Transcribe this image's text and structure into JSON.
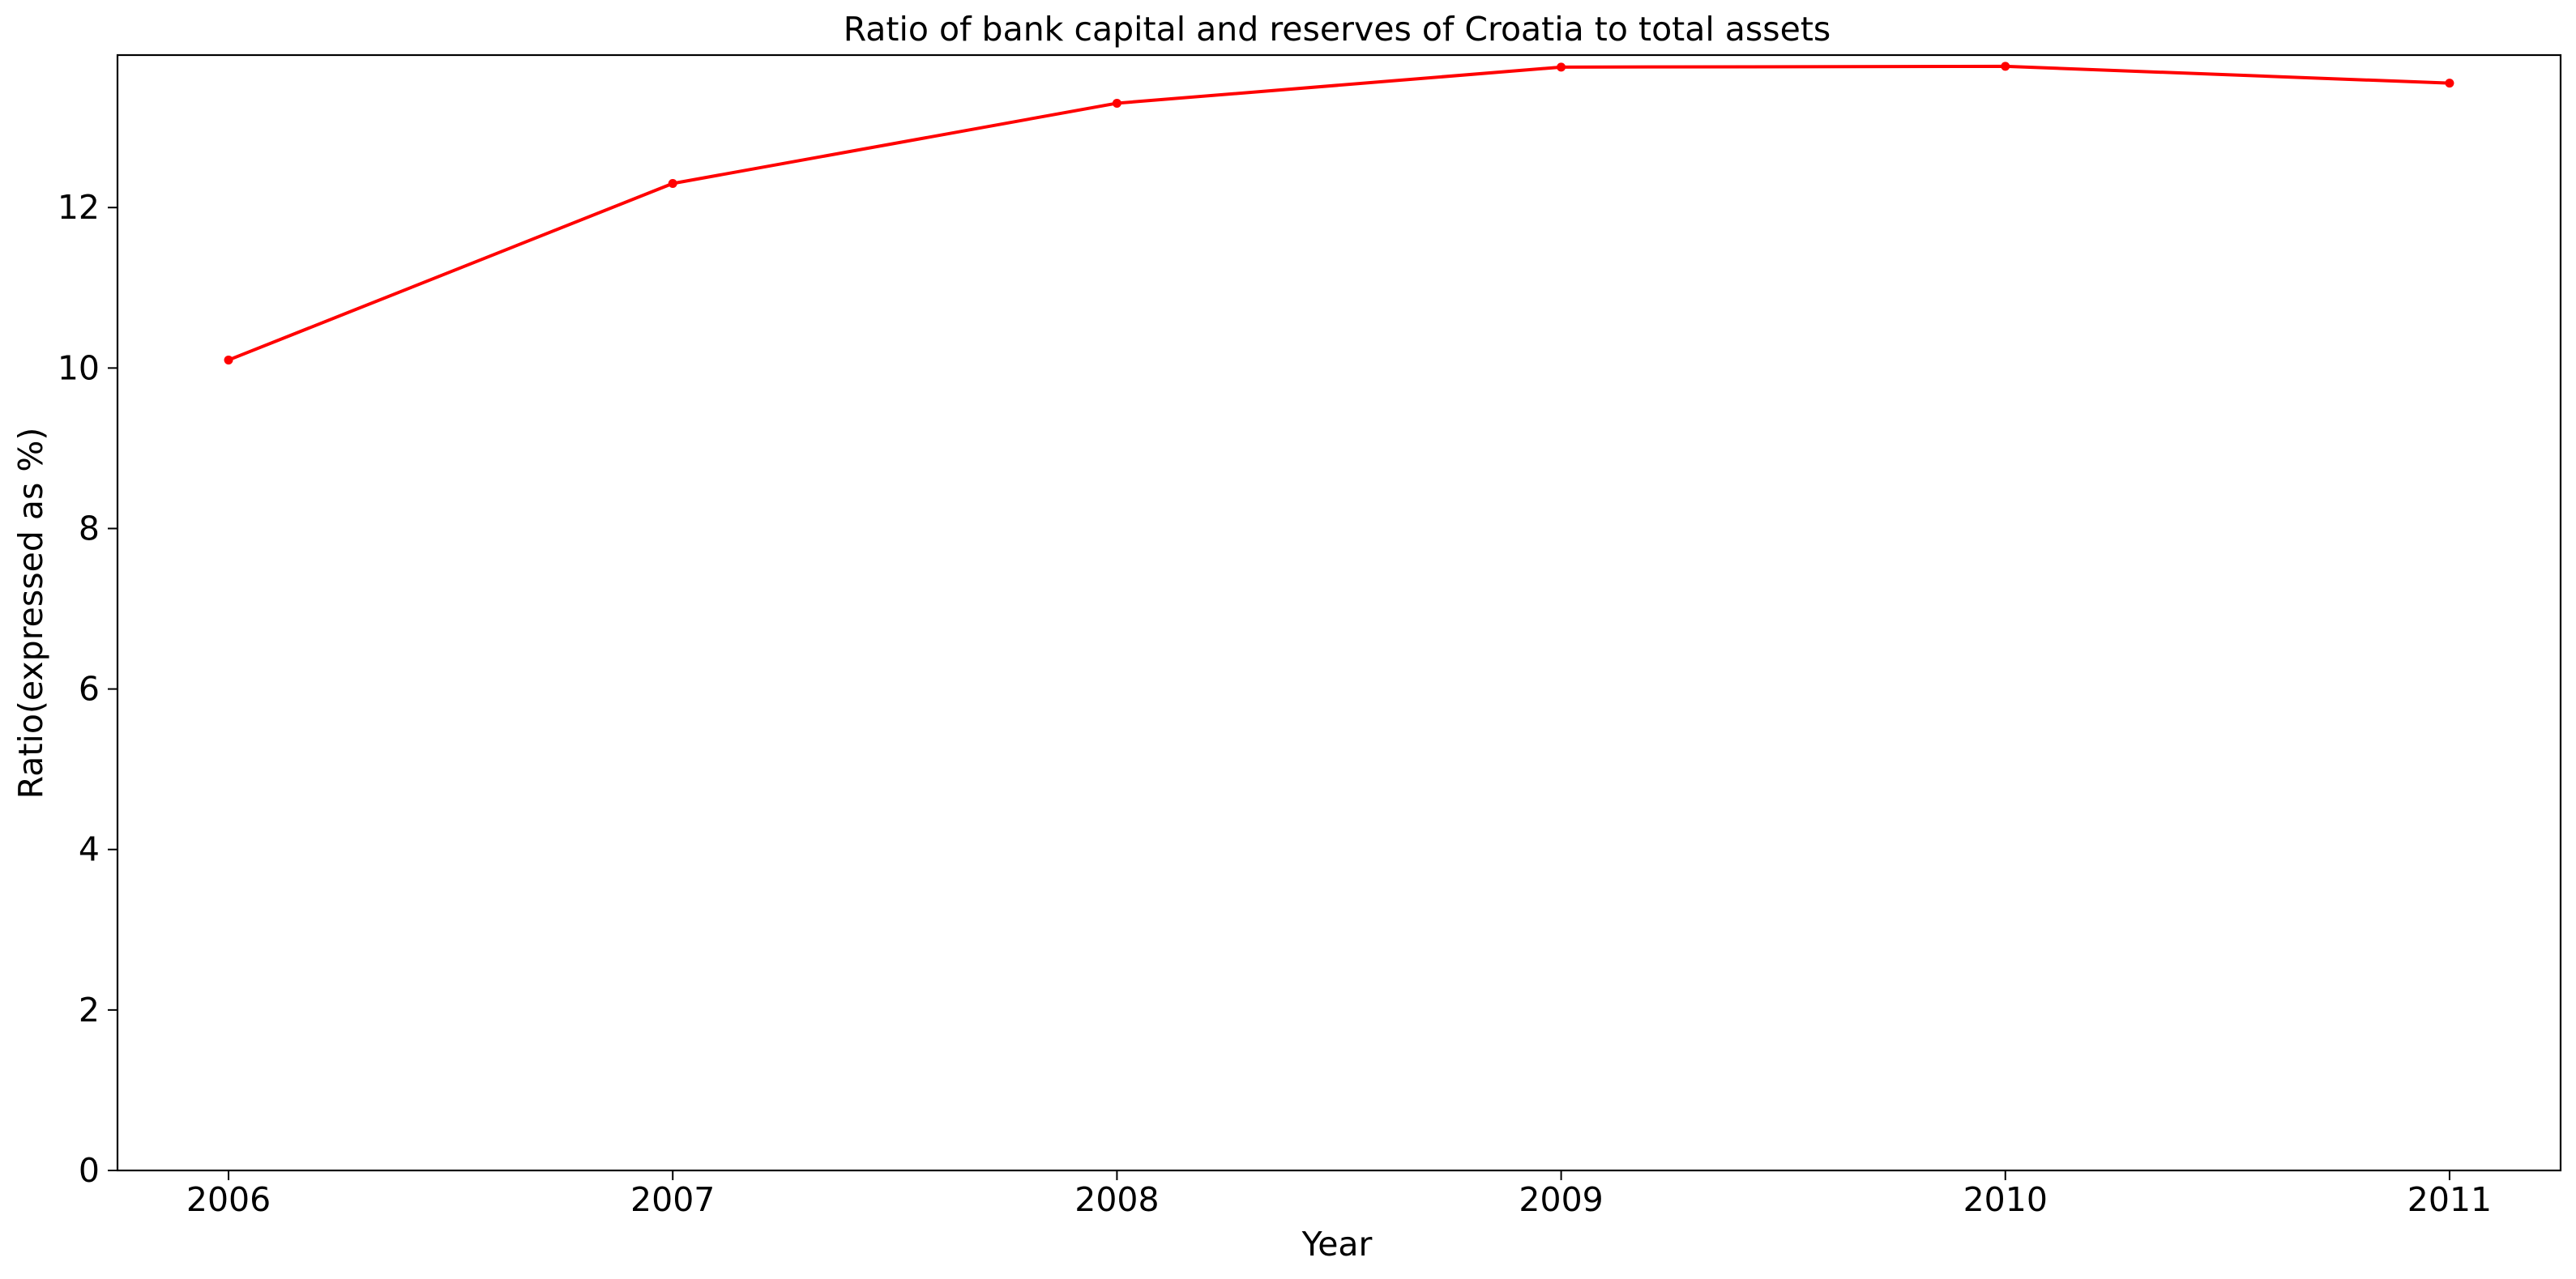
{
  "chart_data": {
    "type": "line",
    "title": "Ratio of bank capital and reserves of Croatia to total assets",
    "xlabel": "Year",
    "ylabel": "Ratio(expressed as %)",
    "x": [
      2006,
      2007,
      2008,
      2009,
      2010,
      2011
    ],
    "series": [
      {
        "values": [
          10.1,
          12.3,
          13.3,
          13.75,
          13.76,
          13.55
        ],
        "color": "#ff0000",
        "marker": "dot"
      }
    ],
    "xlim": [
      2005.75,
      2011.25
    ],
    "ylim": [
      0,
      13.9
    ],
    "xticks": [
      "2006",
      "2007",
      "2008",
      "2009",
      "2010",
      "2011"
    ],
    "yticks": [
      "0",
      "2",
      "4",
      "6",
      "8",
      "10",
      "12"
    ],
    "grid": false,
    "legend": "none"
  }
}
